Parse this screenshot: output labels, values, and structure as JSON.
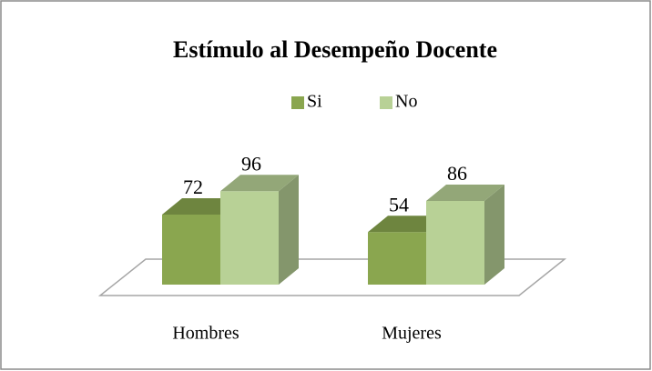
{
  "chart_data": {
    "type": "bar3d",
    "title": "Estímulo al Desempeño Docente",
    "categories": [
      "Hombres",
      "Mujeres"
    ],
    "series": [
      {
        "name": "Si",
        "color": "#8aa64f",
        "values": [
          72,
          54
        ]
      },
      {
        "name": "No",
        "color": "#b8d196",
        "values": [
          96,
          86
        ]
      }
    ],
    "legend": "top"
  }
}
